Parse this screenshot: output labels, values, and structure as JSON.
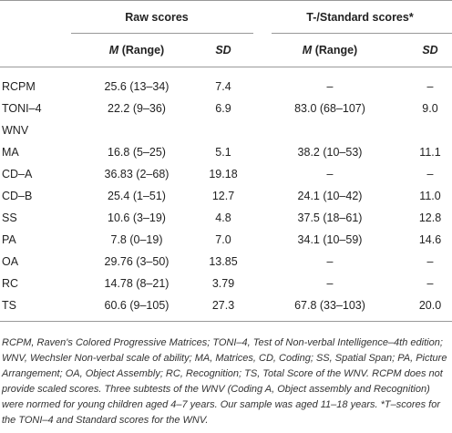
{
  "table": {
    "group_headers": [
      "Raw scores",
      "T-/Standard scores*"
    ],
    "sub_headers": [
      {
        "symbol": "M",
        "label": "(Range)"
      },
      {
        "symbol": "SD"
      },
      {
        "symbol": "M",
        "label": "(Range)"
      },
      {
        "symbol": "SD"
      }
    ],
    "rows": [
      [
        "RCPM",
        "25.6 (13–34)",
        "7.4",
        "–",
        "–"
      ],
      [
        "TONI–4",
        "22.2 (9–36)",
        "6.9",
        "83.0 (68–107)",
        "9.0"
      ],
      [
        "WNV"
      ],
      [
        "MA",
        "16.8 (5–25)",
        "5.1",
        "38.2 (10–53)",
        "11.1"
      ],
      [
        "CD–A",
        "36.83 (2–68)",
        "19.18",
        "–",
        "–"
      ],
      [
        "CD–B",
        "25.4 (1–51)",
        "12.7",
        "24.1 (10–42)",
        "11.0"
      ],
      [
        "SS",
        "10.6 (3–19)",
        "4.8",
        "37.5 (18–61)",
        "12.8"
      ],
      [
        "PA",
        "7.8 (0–19)",
        "7.0",
        "34.1 (10–59)",
        "14.6"
      ],
      [
        "OA",
        "29.76 (3–50)",
        "13.85",
        "–",
        "–"
      ],
      [
        "RC",
        "14.78 (8–21)",
        "3.79",
        "–",
        "–"
      ],
      [
        "TS",
        "60.6 (9–105)",
        "27.3",
        "67.8 (33–103)",
        "20.0"
      ]
    ],
    "footnote": "RCPM, Raven's Colored Progressive Matrices; TONI–4, Test of Non-verbal Intelligence–4th edition; WNV, Wechsler Non-verbal scale of ability; MA, Matrices, CD, Coding; SS, Spatial Span; PA, Picture Arrangement; OA, Object Assembly; RC, Recognition; TS, Total Score of the WNV. RCPM does not provide scaled scores. Three subtests of the WNV (Coding A, Object assembly and Recognition) were normed for young children aged 4–7 years. Our sample was aged 11–18 years. *T–scores for the TONI–4 and Standard scores for the WNV."
  }
}
